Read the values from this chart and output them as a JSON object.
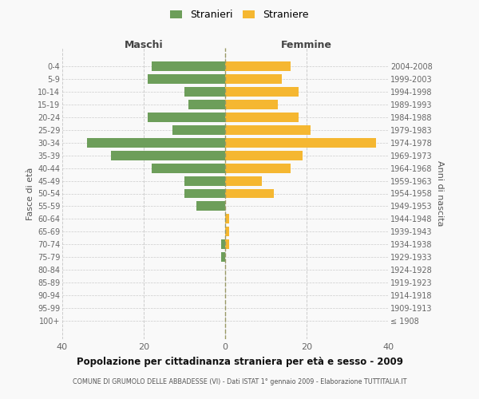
{
  "age_groups": [
    "100+",
    "95-99",
    "90-94",
    "85-89",
    "80-84",
    "75-79",
    "70-74",
    "65-69",
    "60-64",
    "55-59",
    "50-54",
    "45-49",
    "40-44",
    "35-39",
    "30-34",
    "25-29",
    "20-24",
    "15-19",
    "10-14",
    "5-9",
    "0-4"
  ],
  "birth_years": [
    "≤ 1908",
    "1909-1913",
    "1914-1918",
    "1919-1923",
    "1924-1928",
    "1929-1933",
    "1934-1938",
    "1939-1943",
    "1944-1948",
    "1949-1953",
    "1954-1958",
    "1959-1963",
    "1964-1968",
    "1969-1973",
    "1974-1978",
    "1979-1983",
    "1984-1988",
    "1989-1993",
    "1994-1998",
    "1999-2003",
    "2004-2008"
  ],
  "males": [
    0,
    0,
    0,
    0,
    0,
    1,
    1,
    0,
    0,
    7,
    10,
    10,
    18,
    28,
    34,
    13,
    19,
    9,
    10,
    19,
    18
  ],
  "females": [
    0,
    0,
    0,
    0,
    0,
    0,
    1,
    1,
    1,
    0,
    12,
    9,
    16,
    19,
    37,
    21,
    18,
    13,
    18,
    14,
    16
  ],
  "male_color": "#6d9e5a",
  "female_color": "#f5b731",
  "background_color": "#f9f9f9",
  "grid_color": "#cccccc",
  "title": "Popolazione per cittadinanza straniera per età e sesso - 2009",
  "subtitle": "COMUNE DI GRUMOLO DELLE ABBADESSE (VI) - Dati ISTAT 1° gennaio 2009 - Elaborazione TUTTITALIA.IT",
  "left_label": "Maschi",
  "right_label": "Femmine",
  "y_left_label": "Fasce di età",
  "y_right_label": "Anni di nascita",
  "legend_male": "Stranieri",
  "legend_female": "Straniere",
  "xlim": 40
}
